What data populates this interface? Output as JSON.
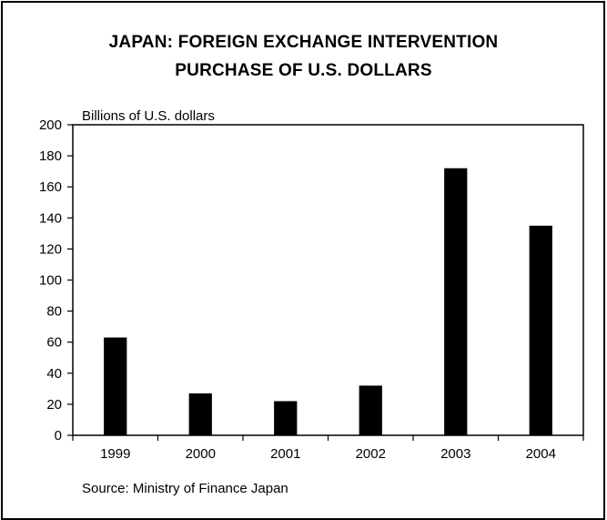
{
  "chart_data": {
    "type": "bar",
    "title": "JAPAN: FOREIGN EXCHANGE INTERVENTION",
    "subtitle": "PURCHASE OF U.S. DOLLARS",
    "ylabel": "Billions of U.S. dollars",
    "xlabel": "",
    "categories": [
      "1999",
      "2000",
      "2001",
      "2002",
      "2003",
      "2004"
    ],
    "values": [
      63,
      27,
      22,
      32,
      172,
      135
    ],
    "ylim": [
      0,
      200
    ],
    "yticks": [
      0,
      20,
      40,
      60,
      80,
      100,
      120,
      140,
      160,
      180,
      200
    ],
    "bar_color": "#000000",
    "grid": false,
    "legend": "none",
    "source": "Source: Ministry of Finance Japan"
  }
}
